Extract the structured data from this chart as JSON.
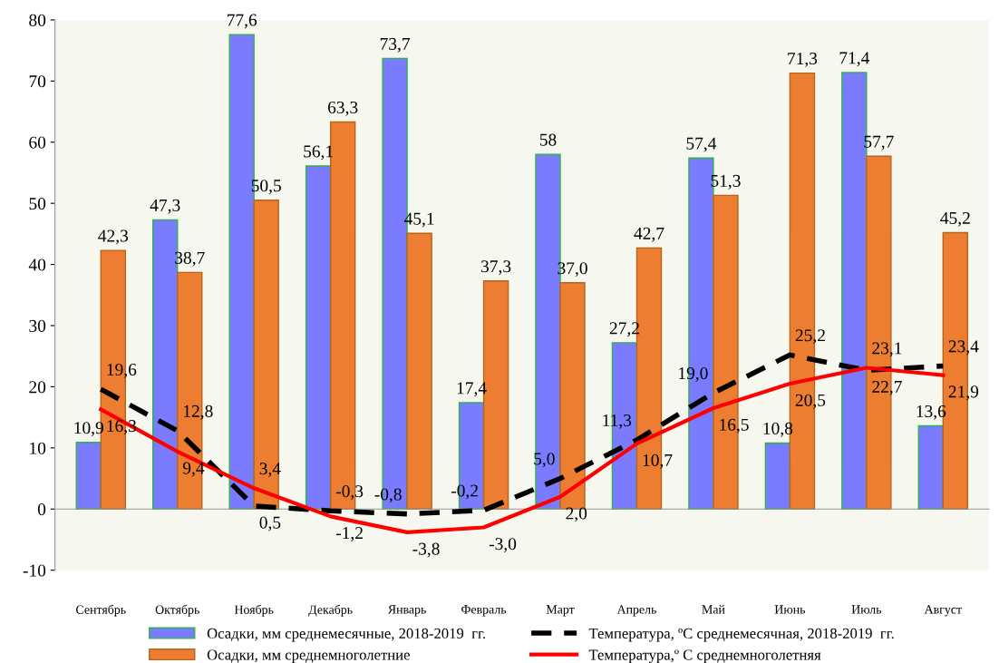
{
  "chart_data": {
    "type": "bar",
    "categories": [
      "Сентябрь",
      "Октябрь",
      "Ноябрь",
      "Декабрь",
      "Январь",
      "Февраль",
      "Март",
      "Апрель",
      "Май",
      "Июнь",
      "Июль",
      "Август"
    ],
    "series": [
      {
        "name": "Осадки, мм среднемесячные, 2018-2019  гг.",
        "color": "#7b7bff",
        "values": [
          10.9,
          47.3,
          77.6,
          56.1,
          73.7,
          17.4,
          58,
          27.2,
          57.4,
          10.8,
          71.4,
          13.6
        ],
        "value_labels": [
          "10,9",
          "47,3",
          "77,6",
          "56,1",
          "73,7",
          "17,4",
          "58",
          "27,2",
          "57,4",
          "10,8",
          "71,4",
          "13,6"
        ]
      },
      {
        "name": "Осадки, мм среднемноголетние",
        "color": "#ed7d31",
        "values": [
          42.3,
          38.7,
          50.5,
          63.3,
          45.1,
          37.3,
          37.0,
          42.7,
          51.3,
          71.3,
          57.7,
          45.2
        ],
        "value_labels": [
          "42,3",
          "38,7",
          "50,5",
          "63,3",
          "45,1",
          "37,3",
          "37,0",
          "42,7",
          "51,3",
          "71,3",
          "57,7",
          "45,2"
        ]
      },
      {
        "name": "Температура, ºС среднемесячная, 2018-2019  гг.",
        "type": "line",
        "line_style": "dashed",
        "color": "#000000",
        "values": [
          19.6,
          12.8,
          0.5,
          -0.3,
          -0.8,
          -0.2,
          5.0,
          11.3,
          19.0,
          25.2,
          22.7,
          23.4
        ],
        "value_labels": [
          "19,6",
          "12,8",
          "0,5",
          "-0,3",
          "-0,8",
          "-0,2",
          "5,0",
          "11,3",
          "19,0",
          "25,2",
          "22,7",
          "23,4"
        ]
      },
      {
        "name": "Температура,º С среднемноголетняя",
        "type": "line",
        "line_style": "solid",
        "color": "#ff0000",
        "values": [
          16.3,
          9.4,
          3.4,
          -1.2,
          -3.8,
          -3.0,
          2.0,
          10.7,
          16.5,
          20.5,
          23.1,
          21.9
        ],
        "value_labels": [
          "16,3",
          "9,4",
          "3,4",
          "-1,2",
          "-3,8",
          "-3,0",
          "2,0",
          "10,7",
          "16,5",
          "20,5",
          "23,1",
          "21,9"
        ]
      }
    ],
    "ylim": [
      -10,
      80
    ],
    "yticks": [
      -10,
      0,
      10,
      20,
      30,
      40,
      50,
      60,
      70,
      80
    ],
    "legend": "bottom",
    "marker": "none"
  }
}
